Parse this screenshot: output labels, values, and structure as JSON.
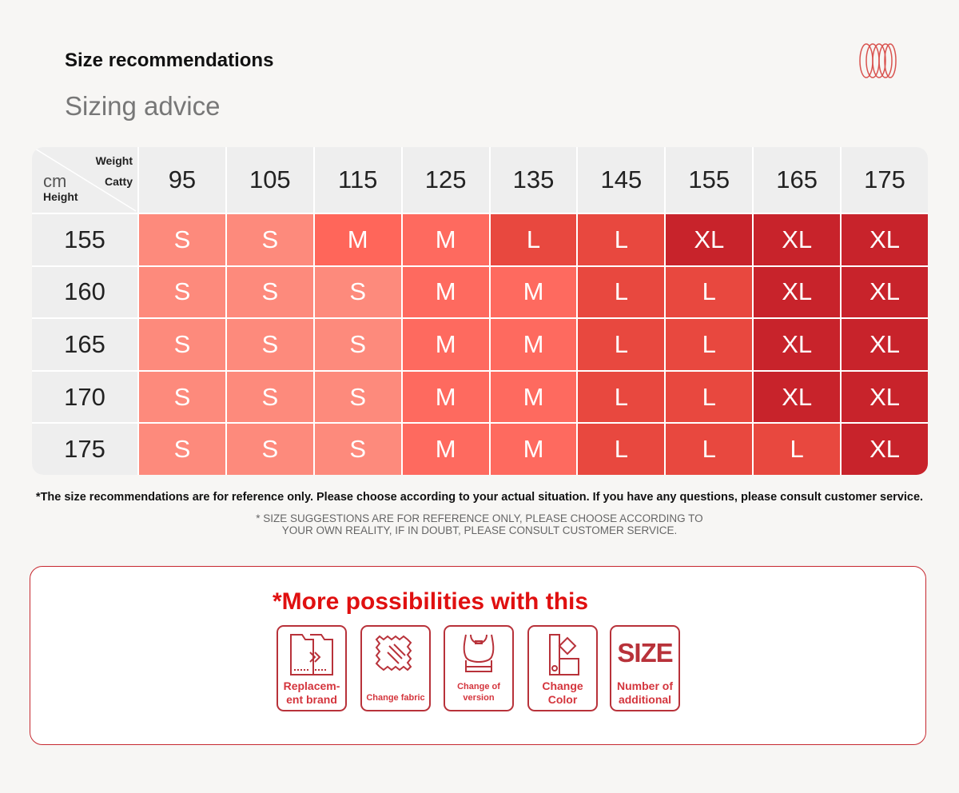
{
  "header": {
    "title": "Size recommendations",
    "subtitle": "Sizing advice"
  },
  "table": {
    "corner": {
      "weight": "Weight",
      "catty": "Catty",
      "cm": "cm",
      "height": "Height"
    },
    "weights": [
      "95",
      "105",
      "115",
      "125",
      "135",
      "145",
      "155",
      "165",
      "175"
    ],
    "rows": [
      {
        "height": "155",
        "sizes": [
          "S",
          "S",
          "M",
          "M",
          "L",
          "L",
          "XL",
          "XL",
          "XL"
        ]
      },
      {
        "height": "160",
        "sizes": [
          "S",
          "S",
          "S",
          "M",
          "M",
          "L",
          "L",
          "XL",
          "XL"
        ]
      },
      {
        "height": "165",
        "sizes": [
          "S",
          "S",
          "S",
          "M",
          "M",
          "L",
          "L",
          "XL",
          "XL"
        ]
      },
      {
        "height": "170",
        "sizes": [
          "S",
          "S",
          "S",
          "M",
          "M",
          "L",
          "L",
          "XL",
          "XL"
        ]
      },
      {
        "height": "175",
        "sizes": [
          "S",
          "S",
          "S",
          "M",
          "M",
          "L",
          "L",
          "L",
          "XL"
        ]
      }
    ],
    "colors": {
      "S": "#fd8a7c",
      "M": "#fe6a5f",
      "L": "#e8483f",
      "XL": "#c8232b"
    }
  },
  "notes": {
    "en": "*The size recommendations are for reference only. Please choose according to your actual situation. If you have any questions, please consult customer service.",
    "caps1": "* SIZE SUGGESTIONS ARE FOR REFERENCE ONLY, PLEASE CHOOSE ACCORDING TO",
    "caps2": "YOUR OWN REALITY, IF IN DOUBT, PLEASE CONSULT CUSTOMER SERVICE."
  },
  "more": {
    "title": "*More possibilities with this",
    "cards": [
      {
        "label": "Replacem-ent brand",
        "icon": "folder-transfer-icon"
      },
      {
        "label": "Change fabric",
        "icon": "fabric-icon"
      },
      {
        "label": "Change of version",
        "icon": "garment-icon"
      },
      {
        "label": "Change Color",
        "icon": "color-swatch-icon"
      },
      {
        "label": "Number of additional",
        "icon": "size-icon",
        "icon_text": "SIZE"
      }
    ]
  }
}
